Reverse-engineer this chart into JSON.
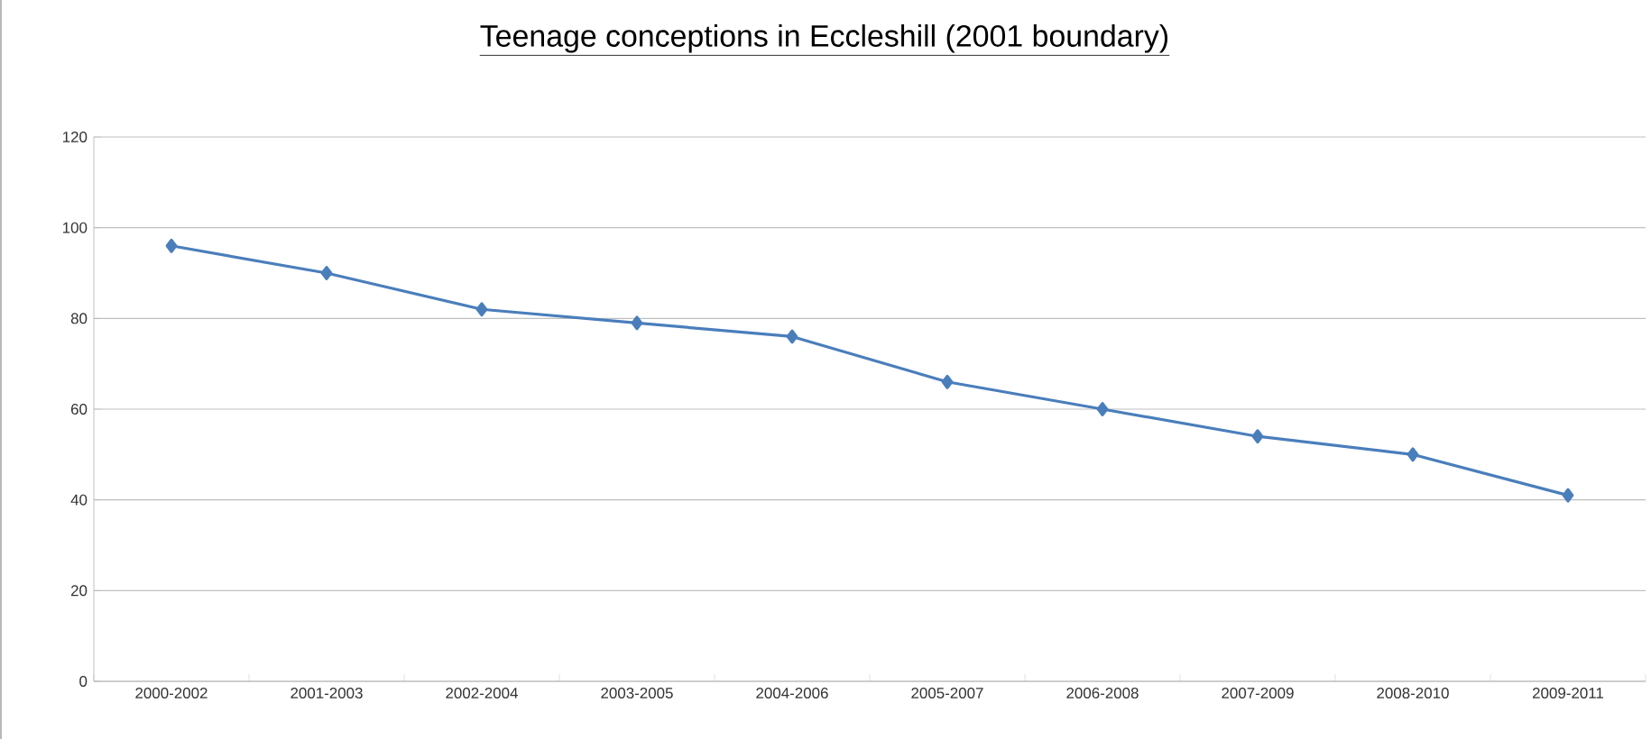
{
  "chart_data": {
    "type": "line",
    "title": "Teenage conceptions in Eccleshill (2001 boundary)",
    "categories": [
      "2000-2002",
      "2001-2003",
      "2002-2004",
      "2003-2005",
      "2004-2006",
      "2005-2007",
      "2006-2008",
      "2007-2009",
      "2008-2010",
      "2009-2011"
    ],
    "series": [
      {
        "color": "#4a7ebb",
        "values": [
          96,
          90,
          82,
          79,
          76,
          66,
          60,
          54,
          50,
          41
        ]
      }
    ],
    "ylim": [
      0,
      120
    ],
    "yticks": [
      0,
      20,
      40,
      60,
      80,
      100,
      120
    ],
    "grid": "y",
    "marker": "diamond",
    "line_style": "solid"
  }
}
